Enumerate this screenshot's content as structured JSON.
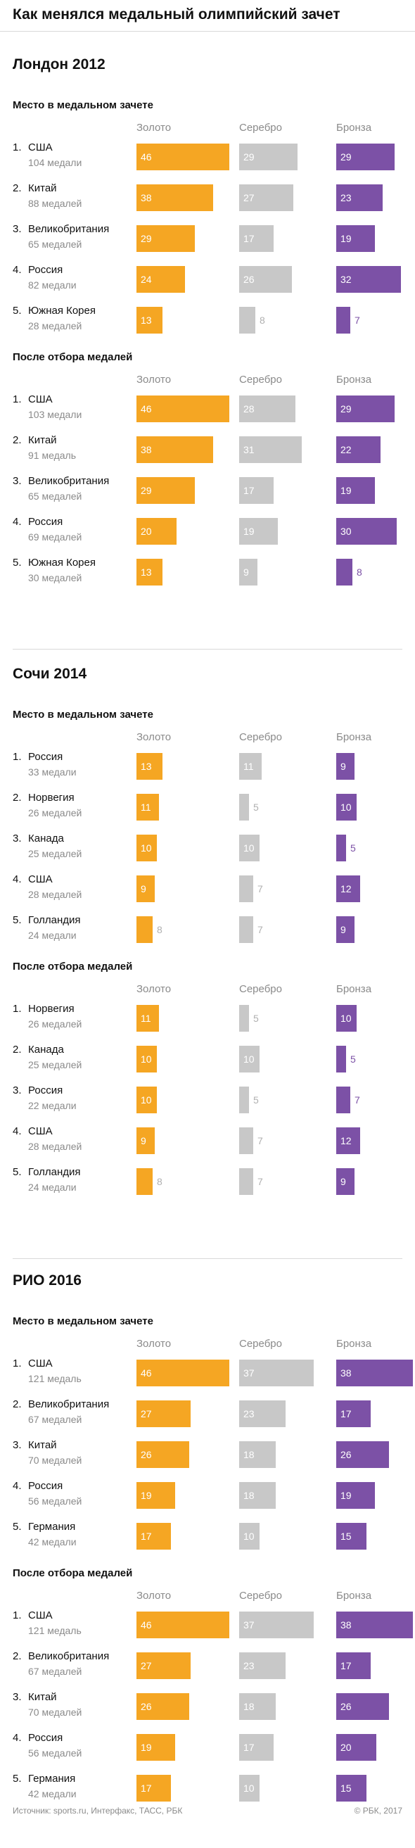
{
  "title": "Как менялся медальный олимпийский зачет",
  "column_labels": [
    "Золото",
    "Серебро",
    "Бронза"
  ],
  "colors": {
    "gold": "#f5a623",
    "silver": "#c8c8c8",
    "bronze": "#7c51a6"
  },
  "chart_data": [
    {
      "type": "bar",
      "title": "Лондон 2012",
      "tables": [
        {
          "subtitle": "Место в медальном зачете",
          "rows": [
            {
              "rank": "1.",
              "country": "США",
              "total_label": "104 медали",
              "gold": 46,
              "silver": 29,
              "bronze": 29
            },
            {
              "rank": "2.",
              "country": "Китай",
              "total_label": "88 медалей",
              "gold": 38,
              "silver": 27,
              "bronze": 23
            },
            {
              "rank": "3.",
              "country": "Великобритания",
              "total_label": "65 медалей",
              "gold": 29,
              "silver": 17,
              "bronze": 19
            },
            {
              "rank": "4.",
              "country": "Россия",
              "total_label": "82 медали",
              "gold": 24,
              "silver": 26,
              "bronze": 32
            },
            {
              "rank": "5.",
              "country": "Южная Корея",
              "total_label": "28 медалей",
              "gold": 13,
              "silver": 8,
              "bronze": 7
            }
          ]
        },
        {
          "subtitle": "После отбора медалей",
          "rows": [
            {
              "rank": "1.",
              "country": "США",
              "total_label": "103 медали",
              "gold": 46,
              "silver": 28,
              "bronze": 29
            },
            {
              "rank": "2.",
              "country": "Китай",
              "total_label": "91 медаль",
              "gold": 38,
              "silver": 31,
              "bronze": 22
            },
            {
              "rank": "3.",
              "country": "Великобритания",
              "total_label": "65 медалей",
              "gold": 29,
              "silver": 17,
              "bronze": 19
            },
            {
              "rank": "4.",
              "country": "Россия",
              "total_label": "69 медалей",
              "gold": 20,
              "silver": 19,
              "bronze": 30
            },
            {
              "rank": "5.",
              "country": "Южная Корея",
              "total_label": "30 медалей",
              "gold": 13,
              "silver": 9,
              "bronze": 8
            }
          ]
        }
      ]
    },
    {
      "type": "bar",
      "title": "Сочи 2014",
      "tables": [
        {
          "subtitle": "Место в медальном зачете",
          "rows": [
            {
              "rank": "1.",
              "country": "Россия",
              "total_label": "33 медали",
              "gold": 13,
              "silver": 11,
              "bronze": 9
            },
            {
              "rank": "2.",
              "country": "Норвегия",
              "total_label": "26 медалей",
              "gold": 11,
              "silver": 5,
              "bronze": 10
            },
            {
              "rank": "3.",
              "country": "Канада",
              "total_label": "25 медалей",
              "gold": 10,
              "silver": 10,
              "bronze": 5
            },
            {
              "rank": "4.",
              "country": "США",
              "total_label": "28 медалей",
              "gold": 9,
              "silver": 7,
              "bronze": 12
            },
            {
              "rank": "5.",
              "country": "Голландия",
              "total_label": "24 медали",
              "gold": 8,
              "silver": 7,
              "bronze": 9
            }
          ]
        },
        {
          "subtitle": "После отбора медалей",
          "rows": [
            {
              "rank": "1.",
              "country": "Норвегия",
              "total_label": "26 медалей",
              "gold": 11,
              "silver": 5,
              "bronze": 10
            },
            {
              "rank": "2.",
              "country": "Канада",
              "total_label": "25 медалей",
              "gold": 10,
              "silver": 10,
              "bronze": 5
            },
            {
              "rank": "3.",
              "country": "Россия",
              "total_label": "22 медали",
              "gold": 10,
              "silver": 5,
              "bronze": 7
            },
            {
              "rank": "4.",
              "country": "США",
              "total_label": "28 медалей",
              "gold": 9,
              "silver": 7,
              "bronze": 12
            },
            {
              "rank": "5.",
              "country": "Голландия",
              "total_label": "24 медали",
              "gold": 8,
              "silver": 7,
              "bronze": 9
            }
          ]
        }
      ]
    },
    {
      "type": "bar",
      "title": "РИО 2016",
      "tables": [
        {
          "subtitle": "Место в медальном зачете",
          "rows": [
            {
              "rank": "1.",
              "country": "США",
              "total_label": "121 медаль",
              "gold": 46,
              "silver": 37,
              "bronze": 38
            },
            {
              "rank": "2.",
              "country": "Великобритания",
              "total_label": "67 медалей",
              "gold": 27,
              "silver": 23,
              "bronze": 17
            },
            {
              "rank": "3.",
              "country": "Китай",
              "total_label": "70 медалей",
              "gold": 26,
              "silver": 18,
              "bronze": 26
            },
            {
              "rank": "4.",
              "country": "Россия",
              "total_label": "56 медалей",
              "gold": 19,
              "silver": 18,
              "bronze": 19
            },
            {
              "rank": "5.",
              "country": "Германия",
              "total_label": "42 медали",
              "gold": 17,
              "silver": 10,
              "bronze": 15
            }
          ]
        },
        {
          "subtitle": "После отбора медалей",
          "rows": [
            {
              "rank": "1.",
              "country": "США",
              "total_label": "121 медаль",
              "gold": 46,
              "silver": 37,
              "bronze": 38
            },
            {
              "rank": "2.",
              "country": "Великобритания",
              "total_label": "67 медалей",
              "gold": 27,
              "silver": 23,
              "bronze": 17
            },
            {
              "rank": "3.",
              "country": "Китай",
              "total_label": "70 медалей",
              "gold": 26,
              "silver": 18,
              "bronze": 26
            },
            {
              "rank": "4.",
              "country": "Россия",
              "total_label": "56 медалей",
              "gold": 19,
              "silver": 17,
              "bronze": 20
            },
            {
              "rank": "5.",
              "country": "Германия",
              "total_label": "42 медали",
              "gold": 17,
              "silver": 10,
              "bronze": 15
            }
          ]
        }
      ]
    }
  ],
  "footer": {
    "source": "Источник: sports.ru, Интерфакс, ТАСС, РБК",
    "copyright": "© РБК, 2017"
  }
}
